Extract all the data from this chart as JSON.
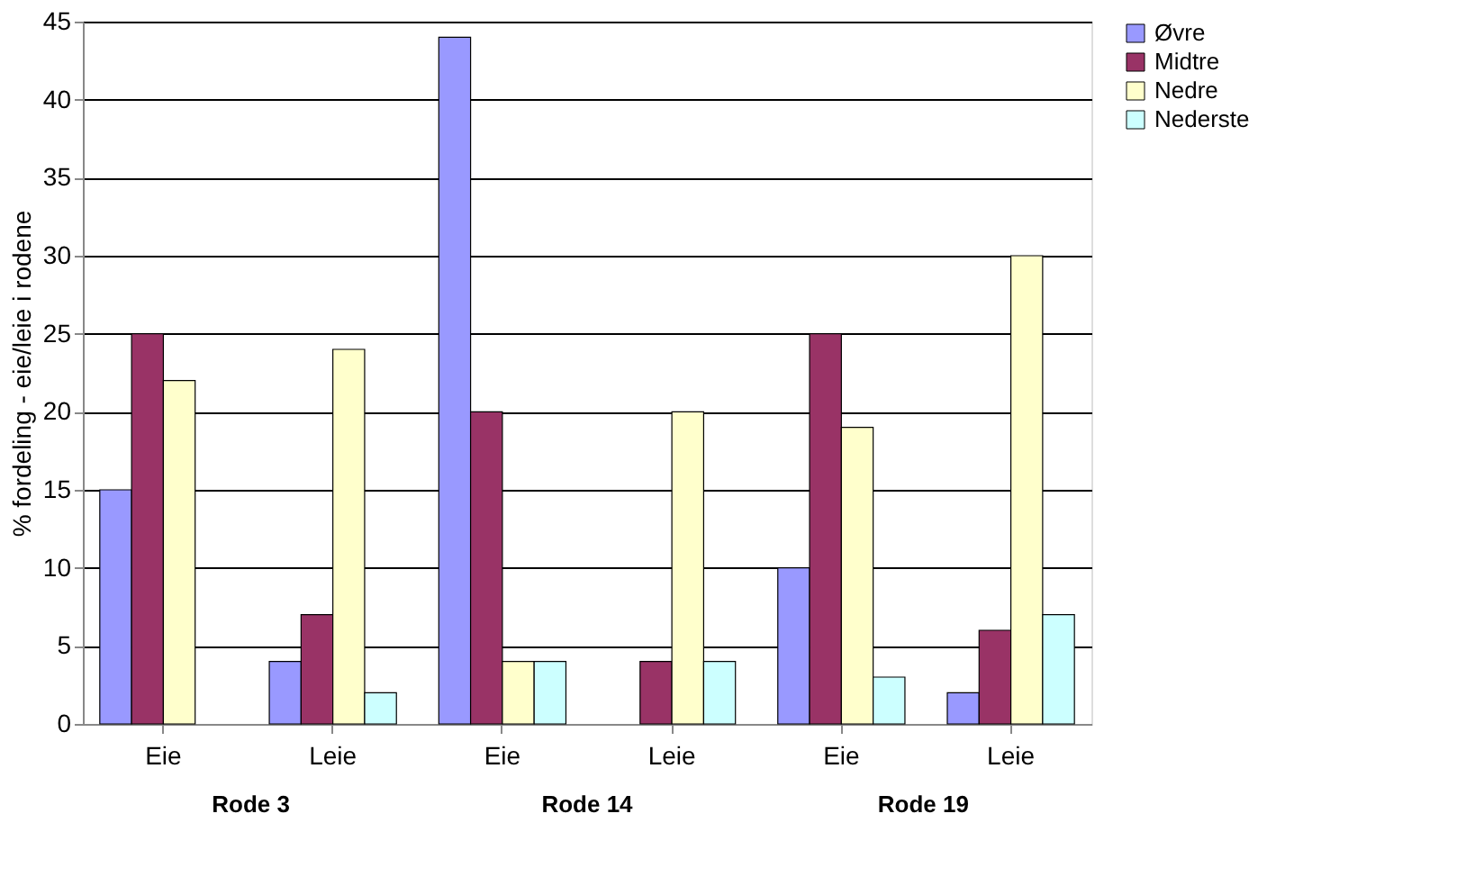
{
  "chart_data": {
    "type": "bar",
    "ylabel": "% fordeling - eie/leie i rodene",
    "categories": [
      "Eie",
      "Leie",
      "Eie",
      "Leie",
      "Eie",
      "Leie"
    ],
    "series": [
      {
        "name": "Øvre",
        "color": "#9999ff",
        "values": [
          15,
          4,
          44,
          0,
          10,
          2
        ]
      },
      {
        "name": "Midtre",
        "color": "#993366",
        "values": [
          25,
          7,
          20,
          4,
          25,
          6
        ]
      },
      {
        "name": "Nedre",
        "color": "#ffffcc",
        "values": [
          22,
          24,
          4,
          20,
          19,
          30
        ]
      },
      {
        "name": "Nederste",
        "color": "#ccffff",
        "values": [
          0,
          2,
          4,
          4,
          3,
          7
        ]
      }
    ],
    "annotations": [
      "Rode 3",
      "Rode 14",
      "Rode 19"
    ],
    "ylim": [
      0,
      45
    ],
    "yticks": [
      0,
      5,
      10,
      15,
      20,
      25,
      30,
      35,
      40,
      45
    ],
    "grid": "y",
    "legend": "right"
  }
}
